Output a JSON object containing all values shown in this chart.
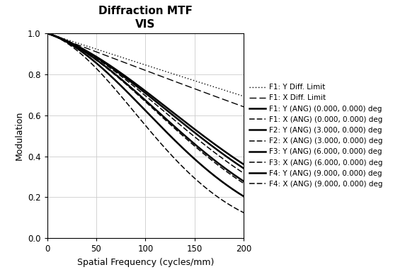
{
  "title": "Diffraction MTF\nVIS",
  "xlabel": "Spatial Frequency (cycles/mm)",
  "ylabel": "Modulation",
  "xlim": [
    0,
    200
  ],
  "ylim": [
    0,
    1
  ],
  "xticks": [
    0,
    50,
    100,
    150,
    200
  ],
  "yticks": [
    0,
    0.2,
    0.4,
    0.6,
    0.8,
    1.0
  ],
  "legend_entries": [
    "F1: Y Diff. Limit",
    "F1: X Diff. Limit",
    "F1: Y (ANG) (0.000, 0.000) deg",
    "F1: X (ANG) (0.000, 0.000) deg",
    "F2: Y (ANG) (3.000, 0.000) deg",
    "F2: X (ANG) (3.000, 0.000) deg",
    "F3: Y (ANG) (6.000, 0.000) deg",
    "F3: X (ANG) (6.000, 0.000) deg",
    "F4: Y (ANG) (9.000, 0.000) deg",
    "F4: X (ANG) (9.000, 0.000) deg"
  ],
  "background_color": "#ffffff",
  "grid_color": "#cccccc",
  "figsize": [
    5.55,
    3.91
  ],
  "dpi": 100
}
